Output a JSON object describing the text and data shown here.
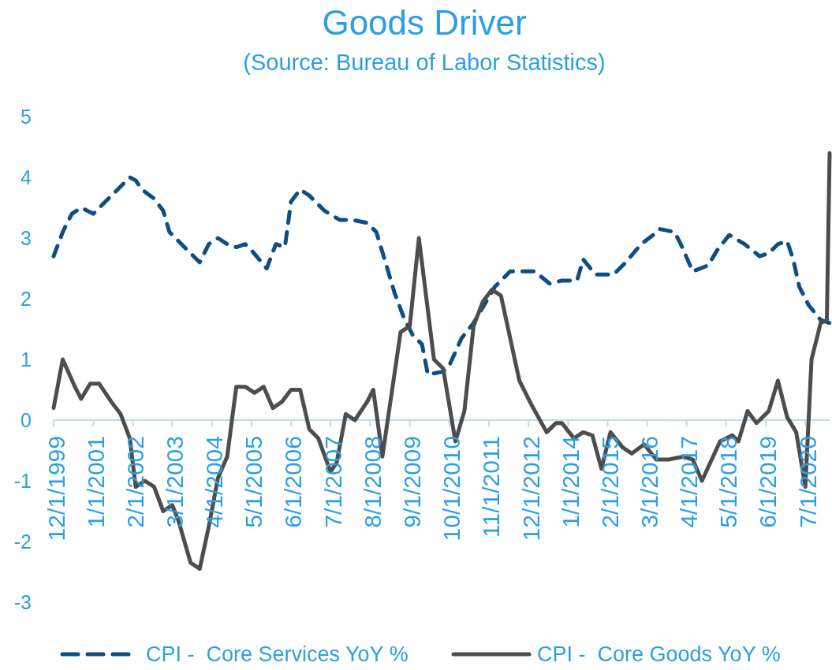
{
  "chart_data": {
    "type": "line",
    "title": "Goods Driver",
    "subtitle": "(Source: Bureau of Labor Statistics)",
    "xlim": [
      "1999-12",
      "2021-03"
    ],
    "xticks": [
      {
        "value": "1999-12",
        "label": "12/1/1999"
      },
      {
        "value": "2001-01",
        "label": "1/1/2001"
      },
      {
        "value": "2002-02",
        "label": "2/1/2002"
      },
      {
        "value": "2003-03",
        "label": "3/1/2003"
      },
      {
        "value": "2004-04",
        "label": "4/1/2004"
      },
      {
        "value": "2005-05",
        "label": "5/1/2005"
      },
      {
        "value": "2006-06",
        "label": "6/1/2006"
      },
      {
        "value": "2007-07",
        "label": "7/1/2007"
      },
      {
        "value": "2008-08",
        "label": "8/1/2008"
      },
      {
        "value": "2009-09",
        "label": "9/1/2009"
      },
      {
        "value": "2010-10",
        "label": "10/1/2010"
      },
      {
        "value": "2011-11",
        "label": "11/1/2011"
      },
      {
        "value": "2012-12",
        "label": "12/1/2012"
      },
      {
        "value": "2014-01",
        "label": "1/1/2014"
      },
      {
        "value": "2015-02",
        "label": "2/1/2015"
      },
      {
        "value": "2016-03",
        "label": "3/1/2016"
      },
      {
        "value": "2017-04",
        "label": "4/1/2017"
      },
      {
        "value": "2018-05",
        "label": "5/1/2018"
      },
      {
        "value": "2019-06",
        "label": "6/1/2019"
      },
      {
        "value": "2020-07",
        "label": "7/1/2020"
      }
    ],
    "ylim": [
      -3,
      5
    ],
    "yticks": [
      -3,
      -2,
      -1,
      0,
      1,
      2,
      3,
      4,
      5
    ],
    "legend": "bottom",
    "series": [
      {
        "name": "CPI -  Core Services YoY %",
        "color": "#0d4f85",
        "line_style": "dashed",
        "x": [
          "1999-12",
          "2000-03",
          "2000-06",
          "2000-09",
          "2001-01",
          "2001-04",
          "2001-08",
          "2002-01",
          "2002-03",
          "2002-05",
          "2002-09",
          "2002-12",
          "2003-02",
          "2003-07",
          "2003-12",
          "2004-03",
          "2004-06",
          "2004-09",
          "2004-12",
          "2005-03",
          "2005-05",
          "2005-10",
          "2006-01",
          "2006-04",
          "2006-06",
          "2006-09",
          "2006-12",
          "2007-05",
          "2007-10",
          "2008-02",
          "2008-07",
          "2008-10",
          "2009-01",
          "2009-04",
          "2009-07",
          "2009-10",
          "2010-01",
          "2010-03",
          "2010-08",
          "2010-10",
          "2011-02",
          "2011-06",
          "2012-01",
          "2012-06",
          "2012-08",
          "2013-02",
          "2013-07",
          "2013-11",
          "2014-04",
          "2014-06",
          "2014-10",
          "2015-04",
          "2015-08",
          "2016-01",
          "2016-05",
          "2016-07",
          "2016-12",
          "2017-02",
          "2017-06",
          "2017-11",
          "2018-02",
          "2018-06",
          "2018-11",
          "2019-04",
          "2019-07",
          "2019-10",
          "2020-01",
          "2020-03",
          "2020-05",
          "2020-08",
          "2020-12",
          "2021-03"
        ],
        "values": [
          2.7,
          3.1,
          3.4,
          3.5,
          3.4,
          3.55,
          3.75,
          4.0,
          3.95,
          3.8,
          3.65,
          3.45,
          3.1,
          2.85,
          2.6,
          2.9,
          3.0,
          2.9,
          2.85,
          2.9,
          2.8,
          2.5,
          2.9,
          2.85,
          3.6,
          3.8,
          3.7,
          3.45,
          3.3,
          3.3,
          3.25,
          3.1,
          2.6,
          2.1,
          1.7,
          1.4,
          1.25,
          0.75,
          0.8,
          0.9,
          1.35,
          1.6,
          2.2,
          2.45,
          2.45,
          2.45,
          2.25,
          2.3,
          2.3,
          2.65,
          2.4,
          2.4,
          2.6,
          2.9,
          3.05,
          3.15,
          3.1,
          2.9,
          2.45,
          2.55,
          2.8,
          3.05,
          2.9,
          2.7,
          2.75,
          2.9,
          2.95,
          2.65,
          2.2,
          1.9,
          1.65,
          1.6
        ]
      },
      {
        "name": "CPI -  Core Goods YoY %",
        "color": "#4d4d4d",
        "line_style": "solid",
        "x": [
          "1999-12",
          "2000-03",
          "2000-07",
          "2000-09",
          "2000-12",
          "2001-03",
          "2001-07",
          "2001-10",
          "2002-01",
          "2002-03",
          "2002-06",
          "2002-09",
          "2002-12",
          "2003-03",
          "2003-05",
          "2003-09",
          "2003-12",
          "2004-03",
          "2004-06",
          "2004-09",
          "2004-12",
          "2005-03",
          "2005-06",
          "2005-09",
          "2005-12",
          "2006-03",
          "2006-06",
          "2006-09",
          "2006-12",
          "2007-03",
          "2007-07",
          "2007-09",
          "2007-12",
          "2008-03",
          "2008-07",
          "2008-09",
          "2008-12",
          "2009-06",
          "2009-09",
          "2009-12",
          "2010-05",
          "2010-08",
          "2010-12",
          "2011-03",
          "2011-06",
          "2011-09",
          "2011-12",
          "2012-03",
          "2012-09",
          "2013-01",
          "2013-06",
          "2013-09",
          "2013-11",
          "2014-03",
          "2014-06",
          "2014-09",
          "2014-12",
          "2015-03",
          "2015-07",
          "2015-10",
          "2016-02",
          "2016-06",
          "2016-10",
          "2017-03",
          "2017-06",
          "2017-09",
          "2018-03",
          "2018-07",
          "2018-09",
          "2018-12",
          "2019-03",
          "2019-07",
          "2019-10",
          "2020-01",
          "2020-04",
          "2020-07",
          "2020-09",
          "2020-12",
          "2021-02",
          "2021-03"
        ],
        "values": [
          0.2,
          1.0,
          0.55,
          0.35,
          0.6,
          0.6,
          0.3,
          0.1,
          -0.3,
          -1.1,
          -1.0,
          -1.1,
          -1.5,
          -1.4,
          -1.65,
          -2.35,
          -2.45,
          -1.75,
          -0.95,
          -0.6,
          0.55,
          0.55,
          0.45,
          0.55,
          0.2,
          0.3,
          0.5,
          0.5,
          -0.15,
          -0.3,
          -0.85,
          -0.7,
          0.1,
          0.0,
          0.3,
          0.5,
          -0.6,
          1.45,
          1.55,
          3.0,
          1.0,
          0.85,
          -0.35,
          0.15,
          1.55,
          1.95,
          2.15,
          2.05,
          0.65,
          0.25,
          -0.2,
          -0.05,
          -0.05,
          -0.3,
          -0.2,
          -0.25,
          -0.8,
          -0.2,
          -0.45,
          -0.55,
          -0.4,
          -0.65,
          -0.65,
          -0.6,
          -0.65,
          -1.0,
          -0.35,
          -0.25,
          -0.35,
          0.15,
          -0.05,
          0.15,
          0.65,
          0.05,
          -0.2,
          -1.1,
          1.0,
          1.6,
          1.65,
          4.4
        ]
      }
    ]
  }
}
